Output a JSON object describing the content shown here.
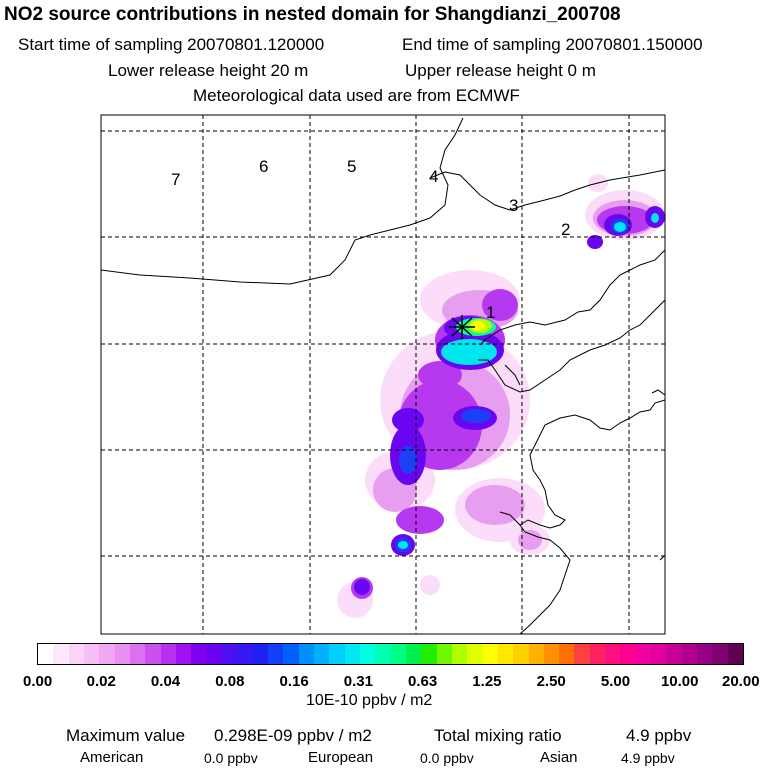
{
  "header": {
    "title": "NO2 source contributions in nested domain for Shangdianzi_200708",
    "start_time": "Start time of sampling 20070801.120000",
    "end_time": "End time of sampling 20070801.150000",
    "lower_release": "Lower release height   20 m",
    "upper_release": "Upper release height    0 m",
    "met_data": "Meteorological data used are from ECMWF"
  },
  "map": {
    "region_labels": [
      "1",
      "2",
      "3",
      "4",
      "5",
      "6",
      "7"
    ],
    "station_marker": "station-cross-icon",
    "colors": {
      "coast": "#000000",
      "grid": "#000000"
    }
  },
  "colorbar": {
    "tick_labels": [
      "0.00",
      "0.02",
      "0.04",
      "0.08",
      "0.16",
      "0.31",
      "0.63",
      "1.25",
      "2.50",
      "5.00",
      "10.00",
      "20.00"
    ],
    "colors": [
      "#ffffff",
      "#ffe8fc",
      "#fcd4fa",
      "#f8bff6",
      "#f0a8f4",
      "#e890f4",
      "#dc70f0",
      "#cc50f0",
      "#b830f0",
      "#a010f0",
      "#8000f0",
      "#6a00f0",
      "#4c10f0",
      "#3818f0",
      "#2020f4",
      "#1040f8",
      "#0060fc",
      "#0090ff",
      "#00b0ff",
      "#00d0ff",
      "#00e8f0",
      "#00ffe0",
      "#00ffb0",
      "#00ff80",
      "#00f050",
      "#20f000",
      "#70f800",
      "#b0ff00",
      "#e0ff00",
      "#ffff00",
      "#ffe800",
      "#ffd000",
      "#ffb000",
      "#ff9000",
      "#ff7000",
      "#ff4040",
      "#ff2060",
      "#ff1080",
      "#ff0090",
      "#f000a0",
      "#e000a0",
      "#c8009a",
      "#b00090",
      "#980088",
      "#800070",
      "#600050"
    ],
    "units": "10E-10 ppbv / m2"
  },
  "footer": {
    "max_label": "Maximum value",
    "max_value": "0.298E-09 ppbv / m2",
    "total_label": "Total mixing ratio",
    "total_value": "4.9 ppbv",
    "regions": [
      {
        "name": "American",
        "value": "0.0 ppbv"
      },
      {
        "name": "European",
        "value": "0.0 ppbv"
      },
      {
        "name": "Asian",
        "value": "4.9 ppbv"
      }
    ]
  }
}
